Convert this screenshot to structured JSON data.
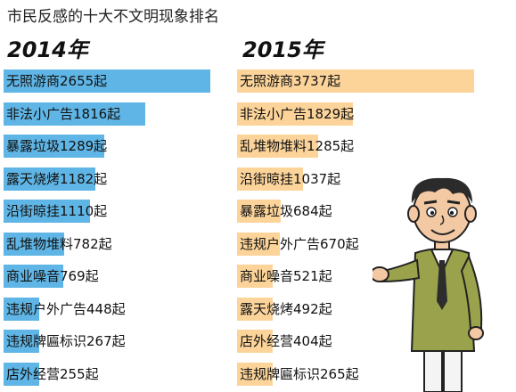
{
  "chart_data": {
    "type": "bar",
    "title": "市民反感的十大不文明现象排名",
    "panels": [
      {
        "year": "2014年",
        "unit": "起",
        "color": "#5fb5e5",
        "items": [
          {
            "name": "无照游商",
            "value": 2655
          },
          {
            "name": "非法小广告",
            "value": 1816
          },
          {
            "name": "暴露垃圾",
            "value": 1289
          },
          {
            "name": "露天烧烤",
            "value": 1182
          },
          {
            "name": "沿街晾挂",
            "value": 1110
          },
          {
            "name": "乱堆物堆料",
            "value": 782
          },
          {
            "name": "商业噪音",
            "value": 769
          },
          {
            "name": "违规户外广告",
            "value": 448
          },
          {
            "name": "违规牌匾标识",
            "value": 267
          },
          {
            "name": "店外经营",
            "value": 255
          }
        ]
      },
      {
        "year": "2015年",
        "unit": "起",
        "color": "#fcd49a",
        "items": [
          {
            "name": "无照游商",
            "value": 3737
          },
          {
            "name": "非法小广告",
            "value": 1829
          },
          {
            "name": "乱堆物堆料",
            "value": 1285
          },
          {
            "name": "沿街晾挂",
            "value": 1037
          },
          {
            "name": "暴露垃圾",
            "value": 684
          },
          {
            "name": "违规户外广告",
            "value": 670
          },
          {
            "name": "商业噪音",
            "value": 521
          },
          {
            "name": "露天烧烤",
            "value": 492
          },
          {
            "name": "店外经营",
            "value": 404
          },
          {
            "name": "违规牌匾标识",
            "value": 265
          }
        ]
      }
    ]
  }
}
